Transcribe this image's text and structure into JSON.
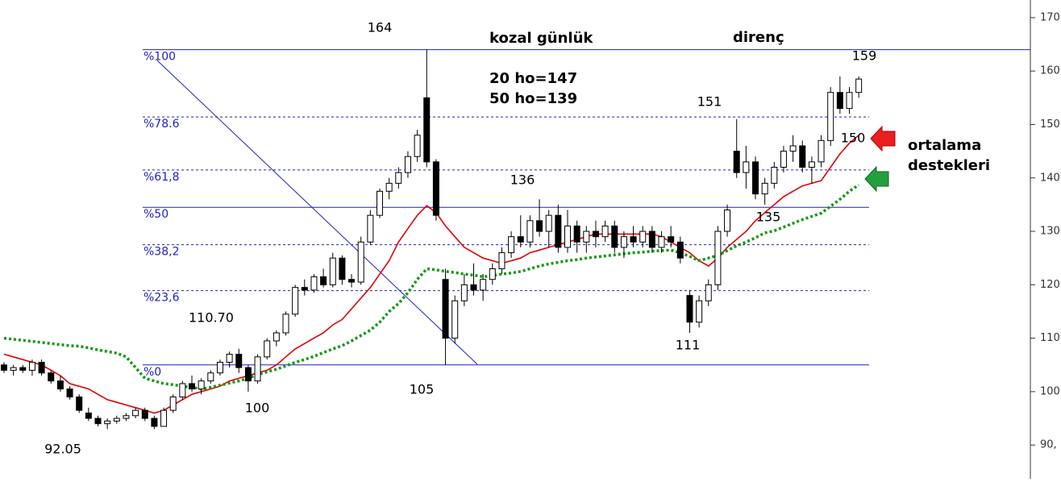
{
  "chart_data": {
    "type": "candlestick",
    "candles": [
      [
        105,
        105.5,
        103.5,
        104
      ],
      [
        104,
        105,
        103,
        104.5
      ],
      [
        104.5,
        105,
        103.5,
        104
      ],
      [
        104,
        106,
        103,
        105.5
      ],
      [
        105.5,
        106,
        103,
        103.5
      ],
      [
        103.5,
        104,
        101.5,
        102
      ],
      [
        102,
        103,
        100,
        100.5
      ],
      [
        100.5,
        101,
        98.5,
        99
      ],
      [
        99,
        99.5,
        96,
        96.5
      ],
      [
        96,
        97,
        94.5,
        95
      ],
      [
        95,
        95.5,
        93.5,
        94
      ],
      [
        94,
        95,
        93,
        94.5
      ],
      [
        94.5,
        95.5,
        94,
        95
      ],
      [
        95,
        96,
        94.5,
        95.5
      ],
      [
        95.5,
        97,
        95,
        96.5
      ],
      [
        96.5,
        97,
        94.5,
        95
      ],
      [
        95,
        95.5,
        93,
        93.5
      ],
      [
        93.5,
        97,
        93.5,
        96.5
      ],
      [
        96.5,
        99.5,
        96,
        99
      ],
      [
        99,
        102,
        98.5,
        101.5
      ],
      [
        101.5,
        103,
        100,
        100.5
      ],
      [
        100.5,
        102.5,
        99.5,
        102
      ],
      [
        102,
        104,
        101.5,
        103.5
      ],
      [
        103.5,
        106,
        103,
        105.5
      ],
      [
        105.5,
        107.5,
        104.5,
        107
      ],
      [
        107,
        108,
        103.5,
        104.5
      ],
      [
        104.5,
        105,
        100,
        102
      ],
      [
        102,
        107,
        101.5,
        106.5
      ],
      [
        106.5,
        110,
        106,
        109.5
      ],
      [
        109.5,
        111.5,
        108.5,
        111
      ],
      [
        111,
        115,
        110.5,
        114.5
      ],
      [
        114.5,
        120,
        114,
        119.5
      ],
      [
        119.5,
        121,
        118,
        119
      ],
      [
        119,
        122,
        118.5,
        121.5
      ],
      [
        121.5,
        123,
        119.5,
        120
      ],
      [
        120,
        126,
        119.5,
        125
      ],
      [
        125,
        125.5,
        120,
        121
      ],
      [
        121,
        122,
        119.5,
        120.5
      ],
      [
        120.5,
        129,
        120,
        128
      ],
      [
        128,
        134,
        127.5,
        133
      ],
      [
        133,
        138,
        132.5,
        137.5
      ],
      [
        137.5,
        140,
        136,
        139
      ],
      [
        139,
        142,
        138,
        141
      ],
      [
        141,
        145,
        140,
        144
      ],
      [
        144,
        149,
        143,
        148
      ],
      [
        155,
        164,
        142,
        143
      ],
      [
        143,
        143.5,
        132,
        133
      ],
      [
        121,
        123,
        105,
        110
      ],
      [
        110,
        118,
        109,
        117
      ],
      [
        117,
        122,
        116,
        120
      ],
      [
        120,
        124,
        118,
        119
      ],
      [
        119,
        122,
        117,
        121
      ],
      [
        121,
        124,
        120,
        123
      ],
      [
        123,
        127,
        122,
        126
      ],
      [
        126,
        130,
        125,
        129
      ],
      [
        129,
        133,
        127,
        128
      ],
      [
        128,
        133,
        127,
        132
      ],
      [
        132,
        136,
        129,
        130
      ],
      [
        130,
        134,
        127,
        133
      ],
      [
        133,
        135,
        126,
        127
      ],
      [
        127,
        134,
        126,
        131
      ],
      [
        131,
        132,
        126,
        128
      ],
      [
        128,
        131,
        126,
        130
      ],
      [
        130,
        132,
        127,
        129
      ],
      [
        129,
        132,
        128,
        131
      ],
      [
        131,
        132,
        126,
        127
      ],
      [
        127,
        130,
        125,
        129
      ],
      [
        129,
        131,
        127,
        128
      ],
      [
        128,
        131,
        127,
        130
      ],
      [
        130,
        131,
        126,
        127
      ],
      [
        127,
        130,
        126,
        129
      ],
      [
        129,
        131,
        127,
        128
      ],
      [
        128,
        129,
        124,
        125
      ],
      [
        118,
        119,
        111,
        113
      ],
      [
        113,
        118,
        112,
        117
      ],
      [
        117,
        121,
        116,
        120
      ],
      [
        120,
        131,
        119,
        130
      ],
      [
        130,
        135,
        129,
        134
      ],
      [
        145,
        151,
        140,
        141
      ],
      [
        141,
        146,
        138,
        143
      ],
      [
        143,
        144,
        136,
        137
      ],
      [
        137,
        140,
        135,
        139
      ],
      [
        139,
        143,
        138,
        142
      ],
      [
        142,
        146,
        141,
        145
      ],
      [
        145,
        148,
        143,
        146
      ],
      [
        146,
        147,
        141,
        142
      ],
      [
        142,
        144,
        139,
        143
      ],
      [
        143,
        148,
        142,
        147
      ],
      [
        147,
        157,
        146,
        156
      ],
      [
        156,
        159,
        152,
        153
      ],
      [
        153,
        157,
        152,
        156
      ],
      [
        156,
        159,
        155,
        158.5
      ]
    ],
    "series": [
      {
        "color": "#e00000",
        "style": "solid",
        "values": [
          107,
          106.5,
          106,
          105.5,
          105,
          104,
          103,
          101.5,
          101,
          100.5,
          99.5,
          98.5,
          98,
          97.5,
          97,
          96.5,
          96,
          96.5,
          97.5,
          98.5,
          99.5,
          100,
          100.5,
          101,
          102,
          102.5,
          103,
          103.5,
          104,
          105,
          106.5,
          108,
          109,
          110,
          111,
          112.5,
          113.5,
          115.5,
          117.5,
          119.5,
          122,
          124.5,
          128,
          130.5,
          133,
          134.8,
          133.5,
          131,
          129,
          127,
          126,
          125,
          124.5,
          124,
          124.5,
          125,
          126,
          126.5,
          127,
          127.5,
          128,
          128.5,
          129,
          129.5,
          129.5,
          129.5,
          129.5,
          129.5,
          129.5,
          129.5,
          129,
          128,
          127,
          126,
          124.5,
          123.5,
          125,
          127,
          128.5,
          130,
          132,
          133.5,
          135,
          136.5,
          137.5,
          138.5,
          139,
          139.5,
          142,
          144.5,
          146.5,
          148
        ]
      },
      {
        "color": "#119911",
        "style": "dotted",
        "values": [
          110,
          109.8,
          109.6,
          109.4,
          109.2,
          109,
          108.8,
          108.6,
          108.5,
          108.2,
          107.8,
          107.5,
          107.2,
          106.5,
          104.5,
          102.5,
          102,
          101.5,
          101.3,
          101,
          100.8,
          100.5,
          100.8,
          101.2,
          101.6,
          102,
          102.5,
          103.2,
          103.7,
          104.2,
          104.8,
          105.5,
          106,
          106.6,
          107.3,
          108,
          108.6,
          109.5,
          110.5,
          111.5,
          113,
          115,
          116.5,
          118.5,
          121,
          123,
          122.8,
          122.5,
          122.3,
          122,
          121.8,
          121.5,
          121.7,
          122,
          122.2,
          122.5,
          123,
          123.5,
          123.9,
          124.2,
          124.5,
          124.7,
          125,
          125.2,
          125.4,
          125.6,
          125.8,
          126,
          126.1,
          126.3,
          126.4,
          126.5,
          126,
          125.3,
          124.5,
          125,
          125.5,
          126.4,
          127.3,
          128,
          128.8,
          129.7,
          130.1,
          130.8,
          131.5,
          132.2,
          132.8,
          133.4,
          134.7,
          136,
          137.5,
          138.7
        ]
      }
    ],
    "ylim": [
      83.7,
      173.3
    ],
    "yticks": [
      {
        "value": 90,
        "label": "90,"
      },
      {
        "value": 100,
        "label": "100,"
      },
      {
        "value": 110,
        "label": "110,"
      },
      {
        "value": 120,
        "label": "120,"
      },
      {
        "value": 130,
        "label": "130,"
      },
      {
        "value": 140,
        "label": "140,"
      },
      {
        "value": 150,
        "label": "150,"
      },
      {
        "value": 160,
        "label": "160,"
      },
      {
        "value": 170,
        "label": "170,"
      }
    ],
    "fib_levels": [
      {
        "label": "%100",
        "value": 164,
        "style": "solid"
      },
      {
        "label": "%78.6",
        "value": 151.4,
        "style": "dashed"
      },
      {
        "label": "%61,8",
        "value": 141.5,
        "style": "dashed"
      },
      {
        "label": "%50",
        "value": 134.5,
        "style": "solid"
      },
      {
        "label": "%38,2",
        "value": 127.5,
        "style": "dashed"
      },
      {
        "label": "%23,6",
        "value": 118.9,
        "style": "dashed"
      },
      {
        "label": "%0",
        "value": 105,
        "style": "solid"
      }
    ],
    "annotations": [
      "164",
      "kozal günlük",
      "20 ho=147",
      "50 ho=139",
      "direnç",
      "159",
      "151",
      "150",
      "136",
      "135",
      "110.70",
      "111",
      "105",
      "100",
      "92.05",
      "ortalama",
      "destekleri"
    ]
  }
}
